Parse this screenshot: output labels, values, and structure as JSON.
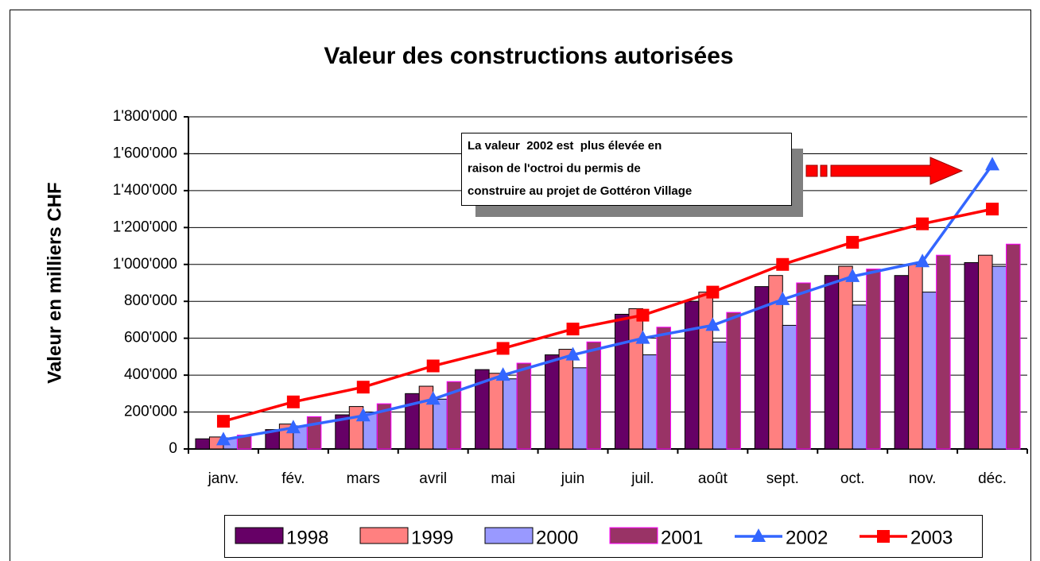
{
  "chart_data": {
    "type": "bar_line",
    "title": "Valeur des constructions autorisées",
    "y_label": "Valeur en milliers CHF",
    "categories": [
      "janv.",
      "fév.",
      "mars",
      "avril",
      "mai",
      "juin",
      "juil.",
      "août",
      "sept.",
      "oct.",
      "nov.",
      "déc."
    ],
    "series": [
      {
        "name": "1998",
        "type": "bar",
        "color": "#660066",
        "values": [
          55000,
          105000,
          185000,
          300000,
          430000,
          510000,
          730000,
          800000,
          880000,
          940000,
          940000,
          1010000
        ]
      },
      {
        "name": "1999",
        "type": "bar",
        "color": "#ff8080",
        "values": [
          65000,
          135000,
          230000,
          340000,
          410000,
          540000,
          760000,
          850000,
          940000,
          990000,
          1000000,
          1050000
        ]
      },
      {
        "name": "2000",
        "type": "bar",
        "color": "#9999ff",
        "values": [
          60000,
          125000,
          200000,
          270000,
          380000,
          440000,
          510000,
          580000,
          670000,
          780000,
          850000,
          990000
        ]
      },
      {
        "name": "2001",
        "type": "bar",
        "color": "#993366",
        "values": [
          75000,
          175000,
          245000,
          365000,
          465000,
          580000,
          660000,
          740000,
          900000,
          975000,
          1050000,
          1110000
        ]
      },
      {
        "name": "2002",
        "type": "line",
        "marker": "triangle",
        "color": "#3366ff",
        "values": [
          50000,
          115000,
          180000,
          270000,
          400000,
          510000,
          600000,
          670000,
          810000,
          935000,
          1015000,
          1540000
        ]
      },
      {
        "name": "2003",
        "type": "line",
        "marker": "square",
        "color": "#ff0000",
        "values": [
          150000,
          255000,
          335000,
          450000,
          545000,
          650000,
          725000,
          850000,
          1000000,
          1120000,
          1220000,
          1300000
        ]
      }
    ],
    "ylim": [
      0,
      1800000
    ],
    "yticks": [
      0,
      {
        "value": 200000,
        "label": "200'000"
      },
      {
        "value": 400000,
        "label": "400'000"
      },
      {
        "value": 600000,
        "label": "600'000"
      },
      {
        "value": 800000,
        "label": "800'000"
      },
      {
        "value": 1000000,
        "label": "1'000'000"
      },
      {
        "value": 1200000,
        "label": "1'200'000"
      },
      {
        "value": 1400000,
        "label": "1'400'000"
      },
      {
        "value": 1600000,
        "label": "1'600'000"
      },
      {
        "value": 1800000,
        "label": "1'800'000"
      }
    ],
    "grid": true,
    "legend": "bottom",
    "annotation": [
      "La valeur  2002 est  plus élevée en",
      "raison de l'octroi du permis de",
      "construire au projet de Gottéron Village"
    ]
  }
}
